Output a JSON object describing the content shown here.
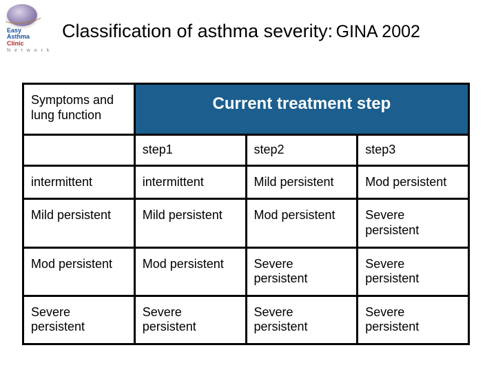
{
  "logo": {
    "line1": "Easy",
    "line2": "Asthma",
    "line3": "Clinic",
    "subtitle": "N e t w o r k"
  },
  "title": {
    "main": "Classification of asthma severity:",
    "sub": "GINA 2002"
  },
  "table": {
    "symptoms_header": "Symptoms and lung function",
    "treatment_header": "Current treatment step",
    "step_labels": [
      "step1",
      "step2",
      "step3"
    ],
    "row_headers": [
      "intermittent",
      "Mild persistent",
      "Mod persistent",
      "Severe persistent"
    ],
    "cells": [
      [
        "intermittent",
        "Mild persistent",
        "Mod persistent"
      ],
      [
        "Mild persistent",
        "Mod persistent",
        "Severe persistent"
      ],
      [
        "Mod persistent",
        "Severe persistent",
        "Severe persistent"
      ],
      [
        "Severe persistent",
        "Severe persistent",
        "Severe persistent"
      ]
    ]
  },
  "style": {
    "header_bg": "#1c5f8e",
    "header_fg": "#ffffff",
    "border_color": "#000000",
    "title_fontsize": 27,
    "cell_fontsize": 18,
    "treatment_header_fontsize": 24
  }
}
